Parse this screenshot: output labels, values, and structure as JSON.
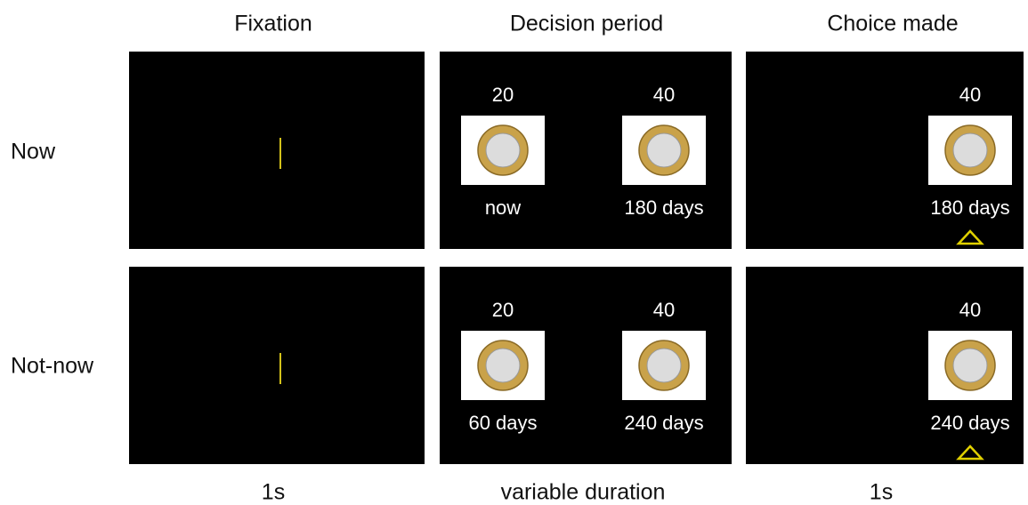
{
  "columns": [
    {
      "title": "Fixation",
      "duration": "1s"
    },
    {
      "title": "Decision period",
      "duration": "variable duration"
    },
    {
      "title": "Choice made",
      "duration": "1s"
    }
  ],
  "rows": [
    {
      "label": "Now",
      "options": [
        {
          "amount": 20,
          "delay": "now"
        },
        {
          "amount": 40,
          "delay": "180 days"
        }
      ],
      "choice": {
        "amount": 40,
        "delay": "180 days"
      }
    },
    {
      "label": "Not-now",
      "options": [
        {
          "amount": 20,
          "delay": "60 days"
        },
        {
          "amount": 40,
          "delay": "240 days"
        }
      ],
      "choice": {
        "amount": 40,
        "delay": "240 days"
      }
    }
  ]
}
